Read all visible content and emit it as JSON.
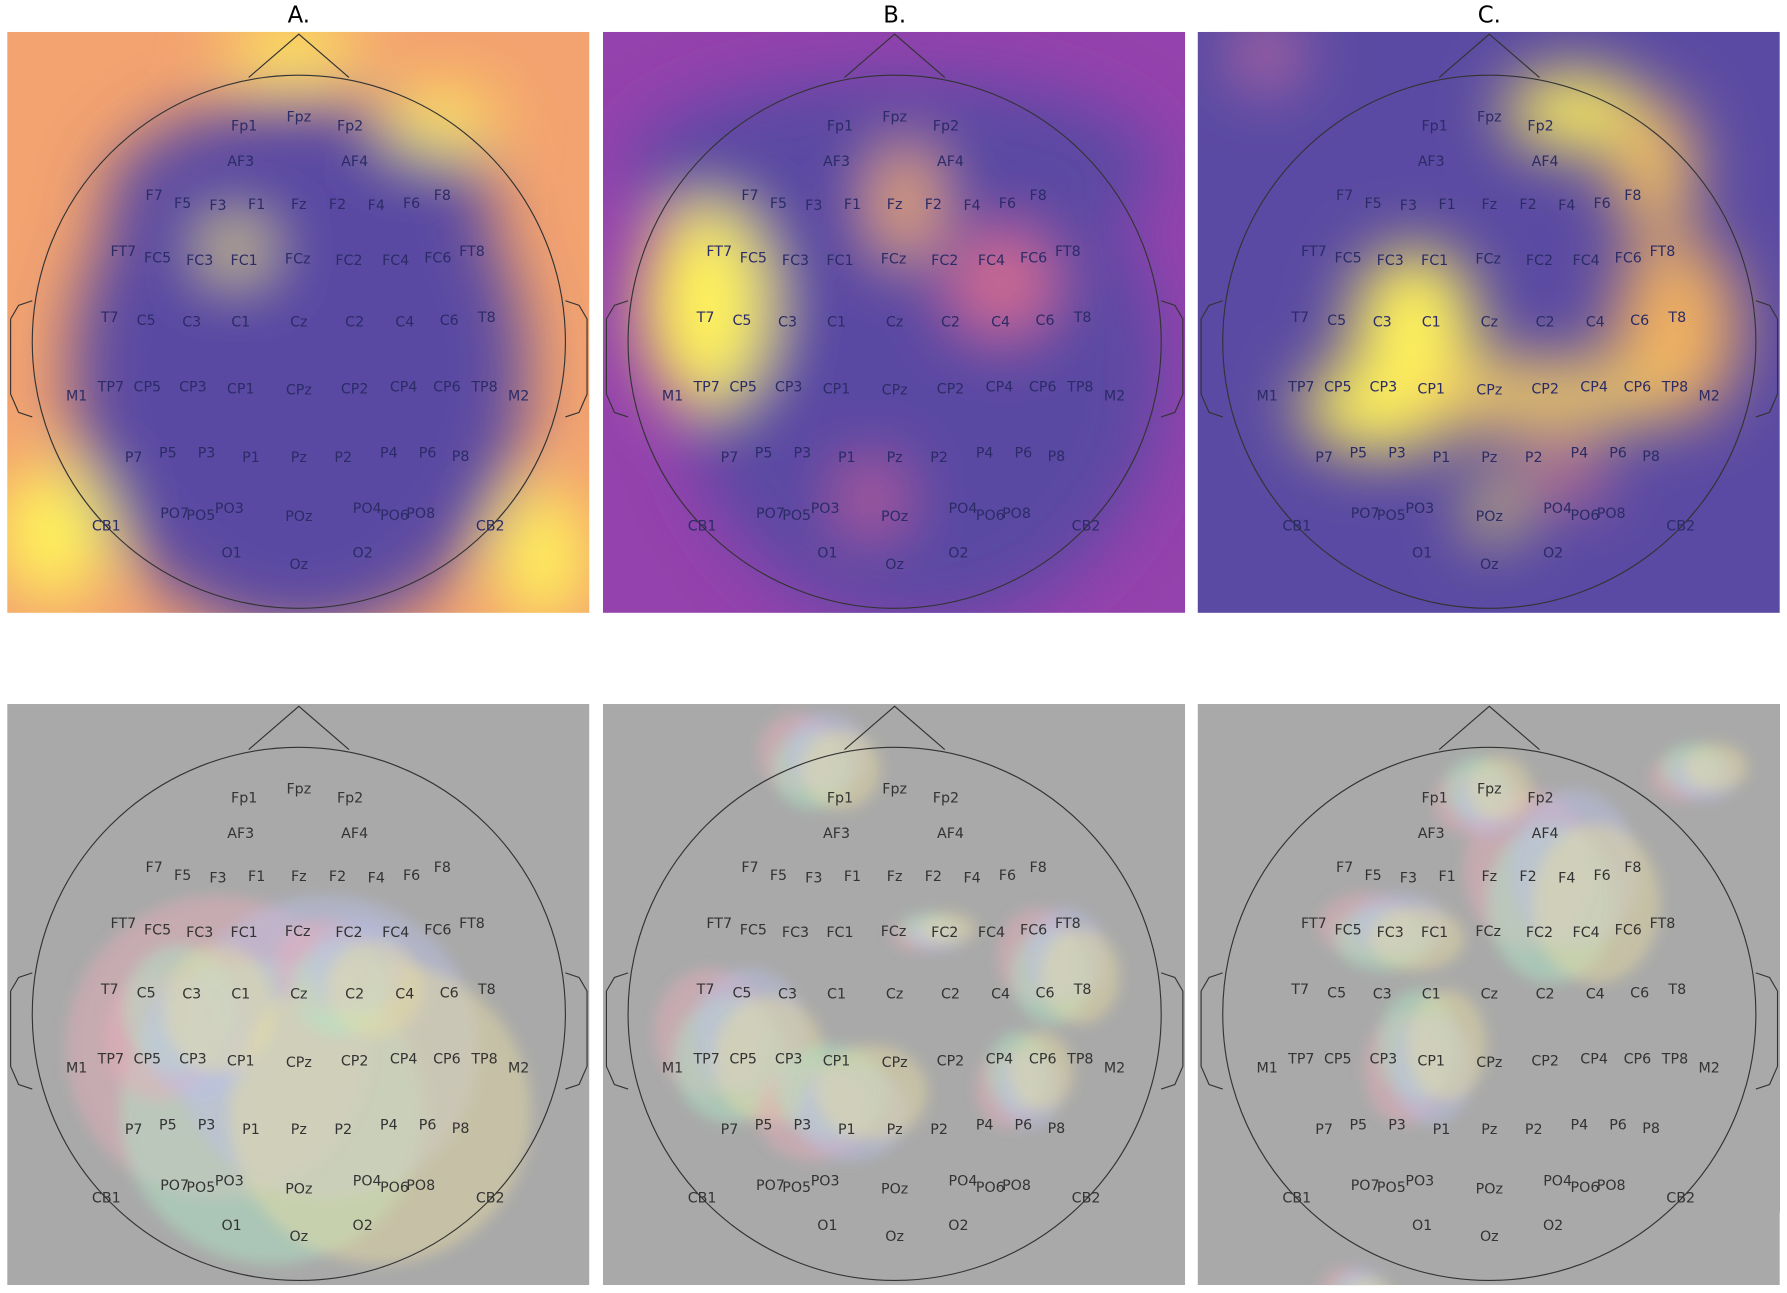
{
  "panels": [
    "A.",
    "B.",
    "C."
  ],
  "electrodes": [
    "Fp1",
    "Fpz",
    "Fp2",
    "AF3",
    "AF4",
    "F7",
    "F5",
    "F3",
    "F1",
    "Fz",
    "F2",
    "F4",
    "F6",
    "F8",
    "FT7",
    "FC5",
    "FC3",
    "FC1",
    "FCz",
    "FC2",
    "FC4",
    "FC6",
    "FT8",
    "T7",
    "C5",
    "C3",
    "C1",
    "Cz",
    "C2",
    "C4",
    "C6",
    "T8",
    "M1",
    "TP7",
    "CP5",
    "CP3",
    "CP1",
    "CPz",
    "CP2",
    "CP4",
    "CP6",
    "TP8",
    "M2",
    "P7",
    "P5",
    "P3",
    "P1",
    "Pz",
    "P2",
    "P4",
    "P6",
    "P8",
    "CB1",
    "PO7",
    "PO5",
    "PO3",
    "POz",
    "PO4",
    "PO6",
    "PO8",
    "CB2",
    "O1",
    "Oz",
    "O2"
  ]
}
